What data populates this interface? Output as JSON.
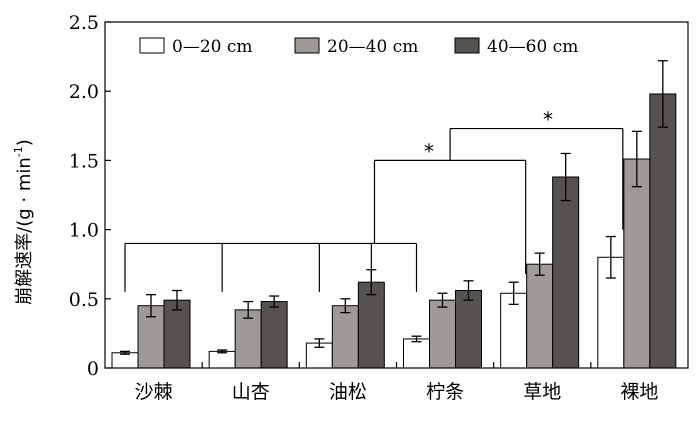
{
  "chart_data": {
    "type": "bar",
    "ylabel": "崩解速率/(g · min",
    "ylabel_sup": "-1",
    "ylabel_close": ")",
    "ylim": [
      0,
      2.5
    ],
    "yticks": [
      "0",
      "0.5",
      "1.0",
      "1.5",
      "2.0",
      "2.5"
    ],
    "categories": [
      "沙棘",
      "山杏",
      "油松",
      "柠条",
      "草地",
      "裸地"
    ],
    "legend_position": "top",
    "series": [
      {
        "name": "0—20 cm",
        "color": "#ffffff",
        "values": [
          0.11,
          0.12,
          0.18,
          0.21,
          0.54,
          0.8
        ],
        "errors": [
          0.01,
          0.01,
          0.03,
          0.02,
          0.08,
          0.15
        ]
      },
      {
        "name": "20—40 cm",
        "color": "#a09a96",
        "values": [
          0.45,
          0.42,
          0.45,
          0.49,
          0.75,
          1.51
        ],
        "errors": [
          0.08,
          0.06,
          0.05,
          0.05,
          0.08,
          0.2
        ]
      },
      {
        "name": "40—60 cm",
        "color": "#55524f",
        "values": [
          0.49,
          0.48,
          0.62,
          0.56,
          1.38,
          1.98
        ],
        "errors": [
          0.07,
          0.04,
          0.09,
          0.07,
          0.17,
          0.24
        ]
      }
    ],
    "significance": [
      {
        "label": "*",
        "from_category": "柠条",
        "to_category": "草地"
      },
      {
        "label": "*",
        "from_category": "柠条",
        "to_category": "裸地"
      }
    ]
  }
}
